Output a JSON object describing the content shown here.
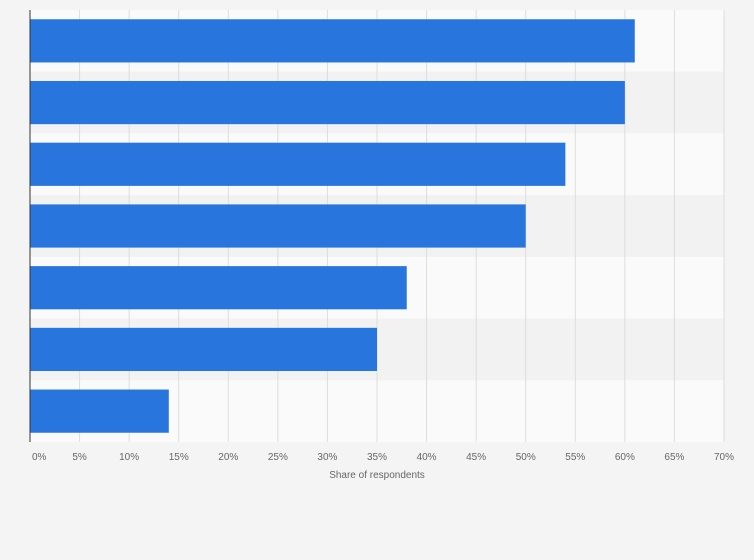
{
  "chart_data": {
    "type": "bar",
    "orientation": "horizontal",
    "title": "",
    "xlabel": "Share of respondents",
    "ylabel": "",
    "categories": [
      "",
      "",
      "",
      "",
      "",
      "",
      ""
    ],
    "values": [
      61,
      60,
      54,
      50,
      38,
      35,
      14
    ],
    "xlim": [
      0,
      70
    ],
    "xticks": [
      0,
      5,
      10,
      15,
      20,
      25,
      30,
      35,
      40,
      45,
      50,
      55,
      60,
      65,
      70
    ],
    "tick_suffix": "%",
    "grid": true,
    "legend": "none",
    "colors": {
      "bar": "#2876dd",
      "band_light": "#fafafa",
      "band_dark": "#f2f2f2",
      "grid": "#dddddd",
      "axis": "#333333"
    }
  }
}
